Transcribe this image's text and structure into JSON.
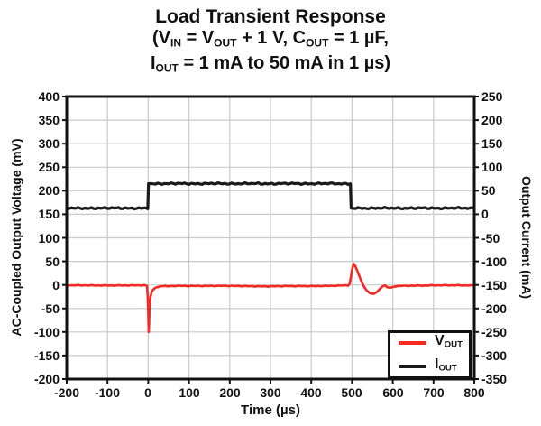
{
  "chart_data": {
    "type": "line",
    "title": "Load Transient Response",
    "subtitle_parts": [
      [
        {
          "t": "(V"
        },
        {
          "t": "IN",
          "sub": true
        },
        {
          "t": " = V"
        },
        {
          "t": "OUT",
          "sub": true
        },
        {
          "t": " + 1 V, C"
        },
        {
          "t": "OUT",
          "sub": true
        },
        {
          "t": " = 1 µF,"
        }
      ],
      [
        {
          "t": "I"
        },
        {
          "t": "OUT",
          "sub": true
        },
        {
          "t": " = 1 mA to 50 mA in 1 µs)"
        }
      ]
    ],
    "x_axis": {
      "label": "Time (µs)",
      "min": -200,
      "max": 800,
      "ticks": [
        -200,
        -100,
        0,
        100,
        200,
        300,
        400,
        500,
        600,
        700,
        800
      ]
    },
    "y_left": {
      "label": "AC-Coupled Output Voltage (mV)",
      "min": -200,
      "max": 400,
      "ticks": [
        400,
        350,
        300,
        250,
        200,
        150,
        100,
        50,
        0,
        -50,
        -100,
        -150,
        -200
      ]
    },
    "y_right": {
      "label": "Output Current (mA)",
      "min": -350,
      "max": 250,
      "ticks": [
        250,
        200,
        150,
        100,
        50,
        0,
        -50,
        -100,
        -150,
        -200,
        -250,
        -300,
        -350
      ]
    },
    "grid": true,
    "legend_position": "bottom-right",
    "colors": {
      "grid": "#c9c9c9",
      "frame": "#111111",
      "background": "#ffffff",
      "text": "#121212",
      "vout": "#f42a22",
      "iout": "#1a1a1a"
    },
    "series": [
      {
        "id": "vout",
        "label_parts": [
          {
            "t": "V"
          },
          {
            "t": "OUT",
            "sub": true
          }
        ],
        "axis": "left",
        "unit": "mV",
        "color": "#f42a22",
        "points": [
          [
            -200,
            -1
          ],
          [
            -60,
            -1
          ],
          [
            -10,
            -1
          ],
          [
            -3,
            -2
          ],
          [
            -1,
            -25
          ],
          [
            0,
            -60
          ],
          [
            1,
            -100
          ],
          [
            2,
            -85
          ],
          [
            3,
            -50
          ],
          [
            5,
            -28
          ],
          [
            8,
            -16
          ],
          [
            12,
            -10
          ],
          [
            18,
            -6
          ],
          [
            30,
            -3
          ],
          [
            60,
            -2
          ],
          [
            150,
            -2
          ],
          [
            300,
            -3
          ],
          [
            450,
            -2
          ],
          [
            490,
            -1
          ],
          [
            494,
            2
          ],
          [
            497,
            15
          ],
          [
            500,
            32
          ],
          [
            504,
            45
          ],
          [
            508,
            40
          ],
          [
            514,
            28
          ],
          [
            521,
            12
          ],
          [
            528,
            -2
          ],
          [
            536,
            -12
          ],
          [
            545,
            -18
          ],
          [
            553,
            -19
          ],
          [
            561,
            -15
          ],
          [
            569,
            -8
          ],
          [
            575,
            -3
          ],
          [
            581,
            -1
          ],
          [
            587,
            -5
          ],
          [
            594,
            -6
          ],
          [
            602,
            -4
          ],
          [
            615,
            -2
          ],
          [
            700,
            -1
          ],
          [
            800,
            -1
          ]
        ]
      },
      {
        "id": "iout",
        "label_parts": [
          {
            "t": "I"
          },
          {
            "t": "OUT",
            "sub": true
          }
        ],
        "axis": "right",
        "unit": "mA",
        "color": "#1a1a1a",
        "points": [
          [
            -200,
            13
          ],
          [
            -1,
            13
          ],
          [
            0.7,
            65
          ],
          [
            496,
            65
          ],
          [
            497.7,
            13
          ],
          [
            800,
            13
          ]
        ]
      }
    ],
    "depicted_event": {
      "load_step_start_us": 0,
      "load_step_end_us": 500,
      "vout_negative_spike_mv": -100,
      "vout_positive_spike_mv": 45
    }
  }
}
